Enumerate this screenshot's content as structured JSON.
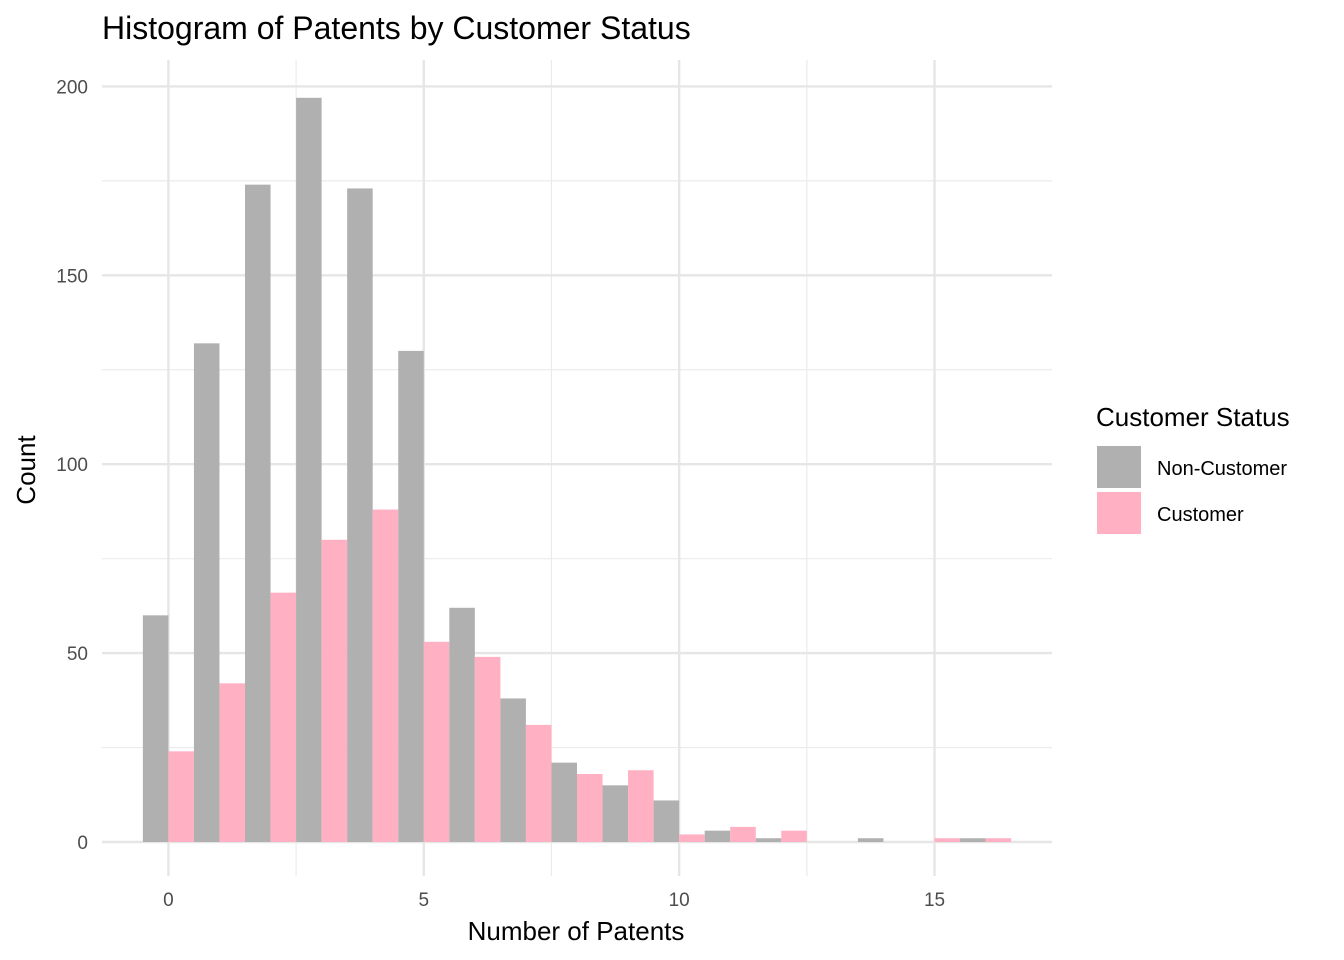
{
  "chart_data": {
    "type": "bar",
    "title": "Histogram of Patents by Customer Status",
    "xlabel": "Number of Patents",
    "ylabel": "Count",
    "xlim": [
      -1.3,
      17.3
    ],
    "ylim": [
      -9,
      207
    ],
    "xticks": [
      0,
      5,
      10,
      15
    ],
    "yticks": [
      0,
      50,
      100,
      150,
      200
    ],
    "grid": true,
    "legend": {
      "title": "Customer Status",
      "position": "right"
    },
    "x": [
      0,
      1,
      2,
      3,
      4,
      5,
      6,
      7,
      8,
      9,
      10,
      11,
      12,
      13,
      14,
      15,
      16
    ],
    "series": [
      {
        "name": "Non-Customer",
        "color": "#b0b0b0",
        "values": [
          60,
          132,
          174,
          197,
          173,
          130,
          62,
          38,
          21,
          15,
          11,
          3,
          1,
          0,
          1,
          0,
          1
        ]
      },
      {
        "name": "Customer",
        "color": "#ffb0c3",
        "values": [
          24,
          42,
          66,
          80,
          88,
          53,
          49,
          31,
          18,
          19,
          2,
          4,
          3,
          0,
          0,
          1,
          1
        ]
      }
    ]
  }
}
